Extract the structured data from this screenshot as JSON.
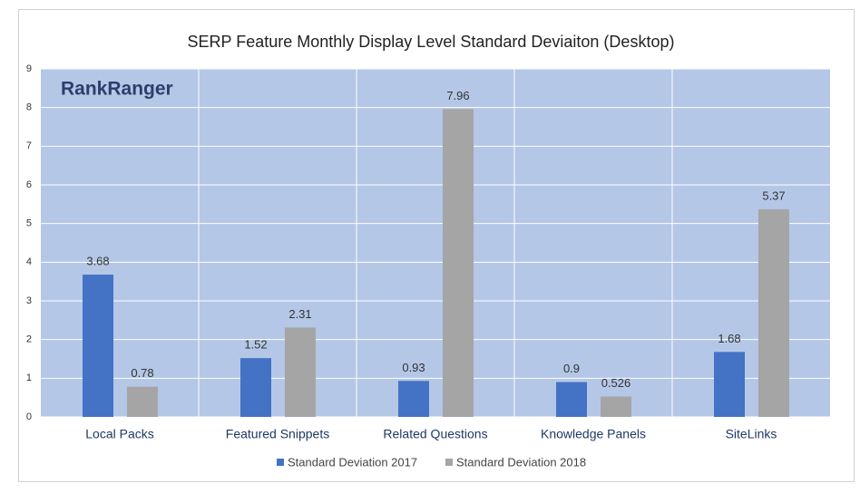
{
  "chart_data": {
    "type": "bar",
    "title": "SERP Feature Monthly Display Level Standard Deviaiton  (Desktop)",
    "logo": "RankRanger",
    "categories": [
      "Local Packs",
      "Featured Snippets",
      "Related Questions",
      "Knowledge Panels",
      "SiteLinks"
    ],
    "series": [
      {
        "name": "Standard Deviation 2017",
        "color": "#4472c4",
        "values": [
          3.68,
          1.52,
          0.93,
          0.9,
          1.68
        ]
      },
      {
        "name": "Standard Deviation 2018",
        "color": "#a5a5a5",
        "values": [
          0.78,
          2.31,
          7.96,
          0.526,
          5.37
        ]
      }
    ],
    "ylim": [
      0,
      9
    ],
    "yticks": [
      0,
      1,
      2,
      3,
      4,
      5,
      6,
      7,
      8,
      9
    ],
    "grid": true,
    "legend": "bottom"
  }
}
